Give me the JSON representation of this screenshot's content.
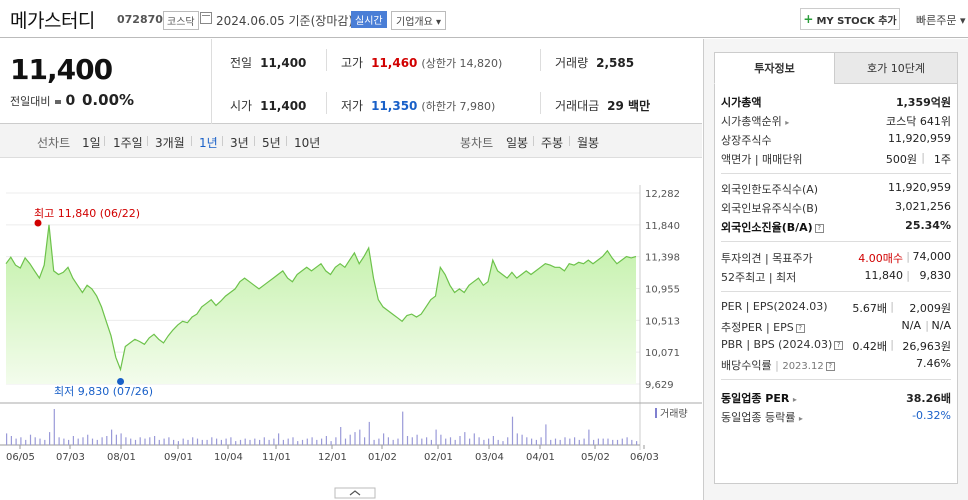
{
  "header": {
    "name": "메가스터디",
    "code": "072870",
    "market": "코스닥",
    "date_text": "2024.06.05 기준(장마감)",
    "realtime_label": "실시간",
    "overview_label": "기업개요 ▾",
    "mystock_label": "MY STOCK 추가",
    "quick_order_label": "빠른주문 ▾"
  },
  "summary": {
    "price": "11,400",
    "change_label": "전일대비",
    "change_value": "0",
    "change_pct": "0.00%",
    "prev_label": "전일",
    "prev": "11,400",
    "high_label": "고가",
    "high": "11,460",
    "upper_limit": "(상한가 14,820)",
    "volume_label": "거래량",
    "volume": "2,585",
    "open_label": "시가",
    "open": "11,400",
    "low_label": "저가",
    "low": "11,350",
    "lower_limit": "(하한가 7,980)",
    "amount_label": "거래대금",
    "amount": "29 백만"
  },
  "tabs": {
    "line_label": "선차트",
    "line_periods": [
      "1일",
      "1주일",
      "3개월",
      "1년",
      "3년",
      "5년",
      "10년"
    ],
    "active_period": "1년",
    "candle_label": "봉차트",
    "candle_periods": [
      "일봉",
      "주봉",
      "월봉"
    ]
  },
  "chart_data": {
    "type": "area",
    "y_ticks": [
      "12,282",
      "11,840",
      "11,398",
      "10,955",
      "10,513",
      "10,071",
      "9,629"
    ],
    "ylim": [
      9629,
      12282
    ],
    "x_ticks": [
      "06/05",
      "07/03",
      "08/01",
      "09/01",
      "10/04",
      "11/01",
      "12/01",
      "01/02",
      "02/01",
      "03/04",
      "04/01",
      "05/02",
      "06/03"
    ],
    "high_annotation": "최고 11,840 (06/22)",
    "low_annotation": "최저 9,830 (07/26)",
    "volume_legend": "거래량",
    "price_series": [
      11300,
      11390,
      11280,
      11240,
      11380,
      11300,
      11200,
      11100,
      11280,
      11840,
      11200,
      11150,
      11180,
      11250,
      11100,
      11000,
      10900,
      11000,
      10950,
      10850,
      10700,
      10500,
      10300,
      10000,
      9830,
      10150,
      10200,
      10250,
      10220,
      10180,
      10270,
      10320,
      10250,
      10200,
      10300,
      10380,
      10450,
      10500,
      10480,
      10560,
      10600,
      10700,
      10750,
      10800,
      10720,
      10780,
      10850,
      10900,
      10950,
      11050,
      11100,
      11050,
      11000,
      10950,
      11000,
      11050,
      11100,
      11150,
      11200,
      11100,
      11050,
      11150,
      11200,
      11250,
      11200,
      11250,
      11300,
      11200,
      11150,
      11250,
      11300,
      11250,
      11350,
      11450,
      11300,
      11400,
      11520,
      11100,
      10800,
      10700,
      10650,
      10600,
      10550,
      10500,
      10580,
      10600,
      10560,
      10600,
      10700,
      10800,
      10850,
      11250,
      11150,
      11000,
      10900,
      10950,
      10900,
      11000,
      11050,
      11100,
      11000,
      11050,
      11350,
      11200,
      11150,
      11100,
      11180,
      11100,
      11150,
      11200,
      11150,
      11200,
      11250,
      11300,
      11280,
      11250,
      11250,
      11200,
      11300,
      11280,
      11320,
      11300,
      11350,
      11300,
      11350,
      11400,
      11480,
      11380,
      11300,
      11350,
      11400,
      11380,
      11400
    ],
    "volume_series": [
      9,
      7,
      5,
      6,
      4,
      8,
      6,
      5,
      4,
      10,
      28,
      6,
      5,
      4,
      7,
      5,
      6,
      8,
      5,
      4,
      6,
      7,
      12,
      8,
      9,
      6,
      5,
      4,
      6,
      5,
      6,
      7,
      4,
      5,
      6,
      4,
      3,
      5,
      4,
      6,
      5,
      4,
      4,
      6,
      5,
      4,
      5,
      6,
      3,
      4,
      5,
      4,
      5,
      4,
      6,
      4,
      5,
      9,
      4,
      5,
      6,
      3,
      4,
      5,
      6,
      4,
      5,
      7,
      3,
      6,
      14,
      5,
      8,
      10,
      12,
      6,
      18,
      4,
      5,
      9,
      6,
      4,
      5,
      26,
      7,
      6,
      8,
      5,
      6,
      4,
      12,
      8,
      5,
      6,
      4,
      7,
      10,
      5,
      9,
      6,
      4,
      5,
      7,
      4,
      3,
      6,
      22,
      9,
      8,
      6,
      5,
      4,
      6,
      16,
      4,
      5,
      4,
      6,
      5,
      6,
      4,
      5,
      12,
      4,
      5,
      5,
      5,
      4,
      4,
      5,
      6,
      4,
      3
    ]
  },
  "invest_tabs": [
    "투자정보",
    "호가 10단계"
  ],
  "invest": {
    "market_cap_label": "시가총액",
    "market_cap": "1,359억원",
    "market_cap_rank_label": "시가총액순위",
    "market_cap_rank": "코스닥 641위",
    "listed_shares_label": "상장주식수",
    "listed_shares": "11,920,959",
    "face_value_label": "액면가 | 매매단위",
    "face_value": "500원",
    "trade_unit": "1주",
    "foreign_limit_label": "외국인한도주식수(A)",
    "foreign_limit": "11,920,959",
    "foreign_hold_label": "외국인보유주식수(B)",
    "foreign_hold": "3,021,256",
    "foreign_ratio_label": "외국인소진율(B/A)",
    "foreign_ratio": "25.34%",
    "opinion_label": "투자의견 | 목표주가",
    "opinion": "4.00매수",
    "target_price": "74,000",
    "week52_label": "52주최고 | 최저",
    "week52_high": "11,840",
    "week52_low": "9,830",
    "per_label": "PER | EPS(2024.03)",
    "per": "5.67배",
    "eps": "2,009원",
    "est_per_label": "추정PER | EPS",
    "est_per": "N/A",
    "est_eps": "N/A",
    "pbr_label": "PBR | BPS (2024.03)",
    "pbr": "0.42배",
    "bps": "26,963원",
    "dividend_label": "배당수익률",
    "dividend_date": "2023.12",
    "dividend": "7.46%",
    "sector_per_label": "동일업종 PER",
    "sector_per": "38.26배",
    "sector_change_label": "동일업종 등락률",
    "sector_change": "-0.32%"
  }
}
